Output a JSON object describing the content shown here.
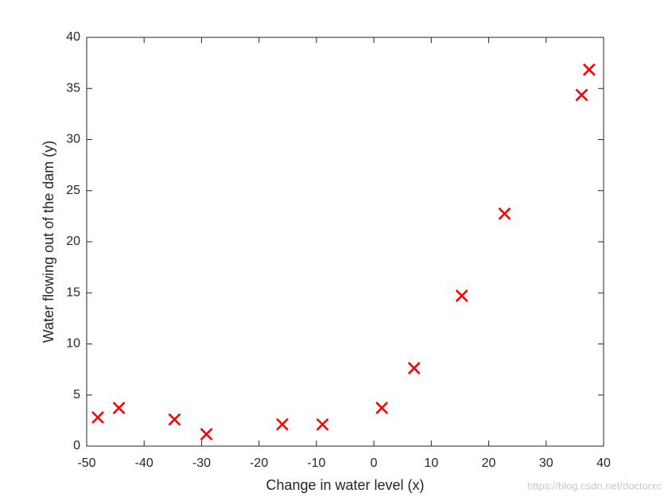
{
  "chart_data": {
    "type": "scatter",
    "x_label": "Change in water level (x)",
    "y_label": "Water flowing out of the dam (y)",
    "watermark": "https://blog.csdn.net/doctorxc",
    "series": [
      {
        "x": [
          -15.94,
          -29.15,
          36.19,
          37.49,
          -48.06,
          -8.94,
          15.31,
          -34.71,
          1.39,
          -44.38,
          7.01,
          22.76
        ],
        "values": [
          2.13,
          1.17,
          34.36,
          36.84,
          2.81,
          2.12,
          14.71,
          2.61,
          3.74,
          3.73,
          7.63,
          22.75
        ],
        "color": "#ff0000",
        "marker": "x"
      }
    ],
    "xlim": [
      -50,
      40
    ],
    "xticks": [
      -50,
      -40,
      -30,
      -20,
      -10,
      0,
      10,
      20,
      30,
      40
    ],
    "ylim": [
      0,
      40
    ],
    "yticks": [
      0,
      5,
      10,
      15,
      20,
      25,
      30,
      35,
      40
    ],
    "grid": false
  }
}
